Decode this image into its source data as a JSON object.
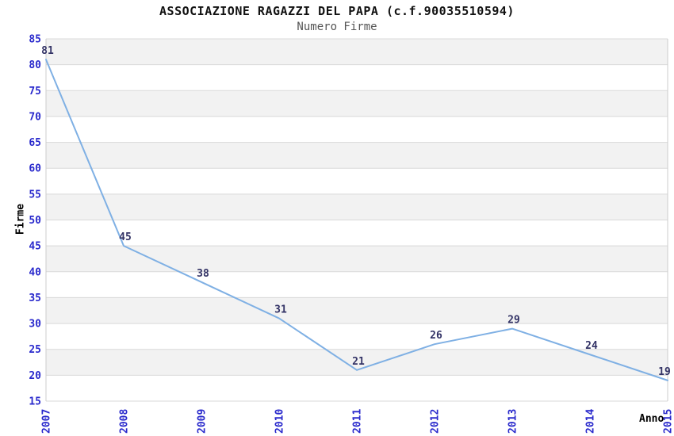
{
  "chart_data": {
    "type": "line",
    "title": "ASSOCIAZIONE RAGAZZI DEL PAPA (c.f.90035510594)",
    "subtitle": "Numero Firme",
    "xlabel": "Anno",
    "ylabel": "Firme",
    "categories": [
      "2007",
      "2008",
      "2009",
      "2010",
      "2011",
      "2012",
      "2013",
      "2014",
      "2015"
    ],
    "values": [
      81,
      45,
      38,
      31,
      21,
      26,
      29,
      24,
      19
    ],
    "ylim": [
      15,
      85
    ],
    "ytick_step": 5,
    "grid": "horizontal",
    "band_fill": "alternating-gray-from-top",
    "legend": "none",
    "markers": "none",
    "x_tick_rotation": -90,
    "colors": {
      "line": "#7fb0e4",
      "data_label": "#333366",
      "axis_tick_label": "#2929cc",
      "axis_title": "#000000",
      "title": "#111111",
      "subtitle": "#555555",
      "band": "#f2f2f2",
      "grid_line": "#d9d9d9",
      "plot_border": "#cccccc",
      "background": "#ffffff"
    }
  }
}
